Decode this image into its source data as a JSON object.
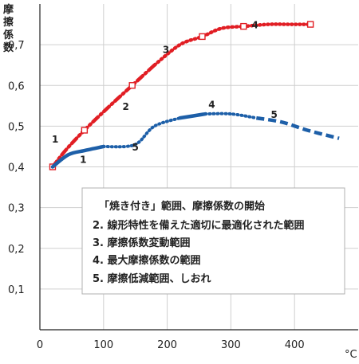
{
  "chart_data": {
    "type": "line",
    "ylabel": "摩擦係数",
    "xlabel": "°C",
    "xlim": [
      0,
      500
    ],
    "ylim": [
      0,
      0.8
    ],
    "x_ticks": [
      "0",
      "100",
      "200",
      "300",
      "400"
    ],
    "y_ticks": [
      "0,1",
      "0,2",
      "0,3",
      "0,4",
      "0,5",
      "0,6",
      "0,7"
    ],
    "grid": true,
    "series": [
      {
        "color": "#e11e24",
        "x": [
          20,
          40,
          70,
          110,
          145,
          180,
          220,
          255,
          285,
          320,
          360,
          390,
          425
        ],
        "values": [
          0.4,
          0.44,
          0.49,
          0.55,
          0.6,
          0.65,
          0.7,
          0.72,
          0.74,
          0.745,
          0.75,
          0.75,
          0.75
        ]
      },
      {
        "color": "#1d5fa8",
        "x": [
          20,
          45,
          70,
          100,
          135,
          155,
          180,
          220,
          260,
          300,
          340,
          380,
          420,
          470
        ],
        "values": [
          0.4,
          0.43,
          0.44,
          0.45,
          0.45,
          0.46,
          0.5,
          0.52,
          0.53,
          0.53,
          0.52,
          0.51,
          0.49,
          0.47
        ]
      }
    ],
    "annotations": [
      {
        "text": "1",
        "x": 24,
        "y": 0.46
      },
      {
        "text": "2",
        "x": 135,
        "y": 0.54
      },
      {
        "text": "3",
        "x": 198,
        "y": 0.68
      },
      {
        "text": "4",
        "x": 338,
        "y": 0.74
      },
      {
        "text": "1",
        "x": 68,
        "y": 0.41
      },
      {
        "text": "5",
        "x": 150,
        "y": 0.44
      },
      {
        "text": "4",
        "x": 270,
        "y": 0.545
      },
      {
        "text": "5",
        "x": 368,
        "y": 0.52
      }
    ],
    "legend_position": "bottom-right",
    "legend": [
      "「焼き付き」範囲、摩擦係数の開始",
      "2. 線形特性を備えた適切に最適化された範囲",
      "3. 摩擦係数変動範囲",
      "4. 最大摩擦係数の範囲",
      "5. 摩擦低減範囲、しおれ"
    ]
  }
}
